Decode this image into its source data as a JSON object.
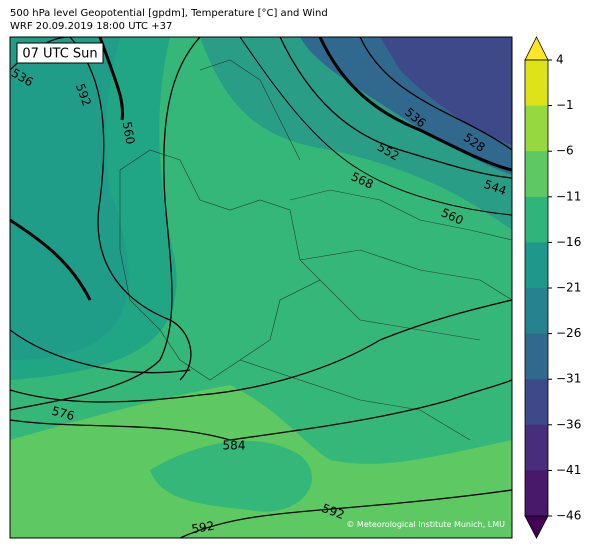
{
  "header": {
    "title": "500 hPa level Geopotential [gpdm], Temperature [°C] and Wind",
    "subtitle": "WRF 20.09.2019 18:00 UTC +37"
  },
  "map": {
    "time_label": "07 UTC Sun",
    "contour_labels": [
      "536",
      "592",
      "560",
      "536",
      "552",
      "528",
      "568",
      "544",
      "560",
      "576",
      "584",
      "592",
      "592"
    ],
    "copyright": "© Meteorological Institute Munich, LMU"
  },
  "colorbar": {
    "ticks": [
      "4",
      "−1",
      "−6",
      "−11",
      "−16",
      "−21",
      "−26",
      "−31",
      "−36",
      "−41",
      "−46"
    ],
    "colors": [
      "#dde318",
      "#95d840",
      "#5ec962",
      "#2fb47c",
      "#1f988b",
      "#26828e",
      "#31688e",
      "#3e4989",
      "#472d7b",
      "#48186a"
    ],
    "over_color": "#fde725",
    "under_color": "#440154"
  }
}
